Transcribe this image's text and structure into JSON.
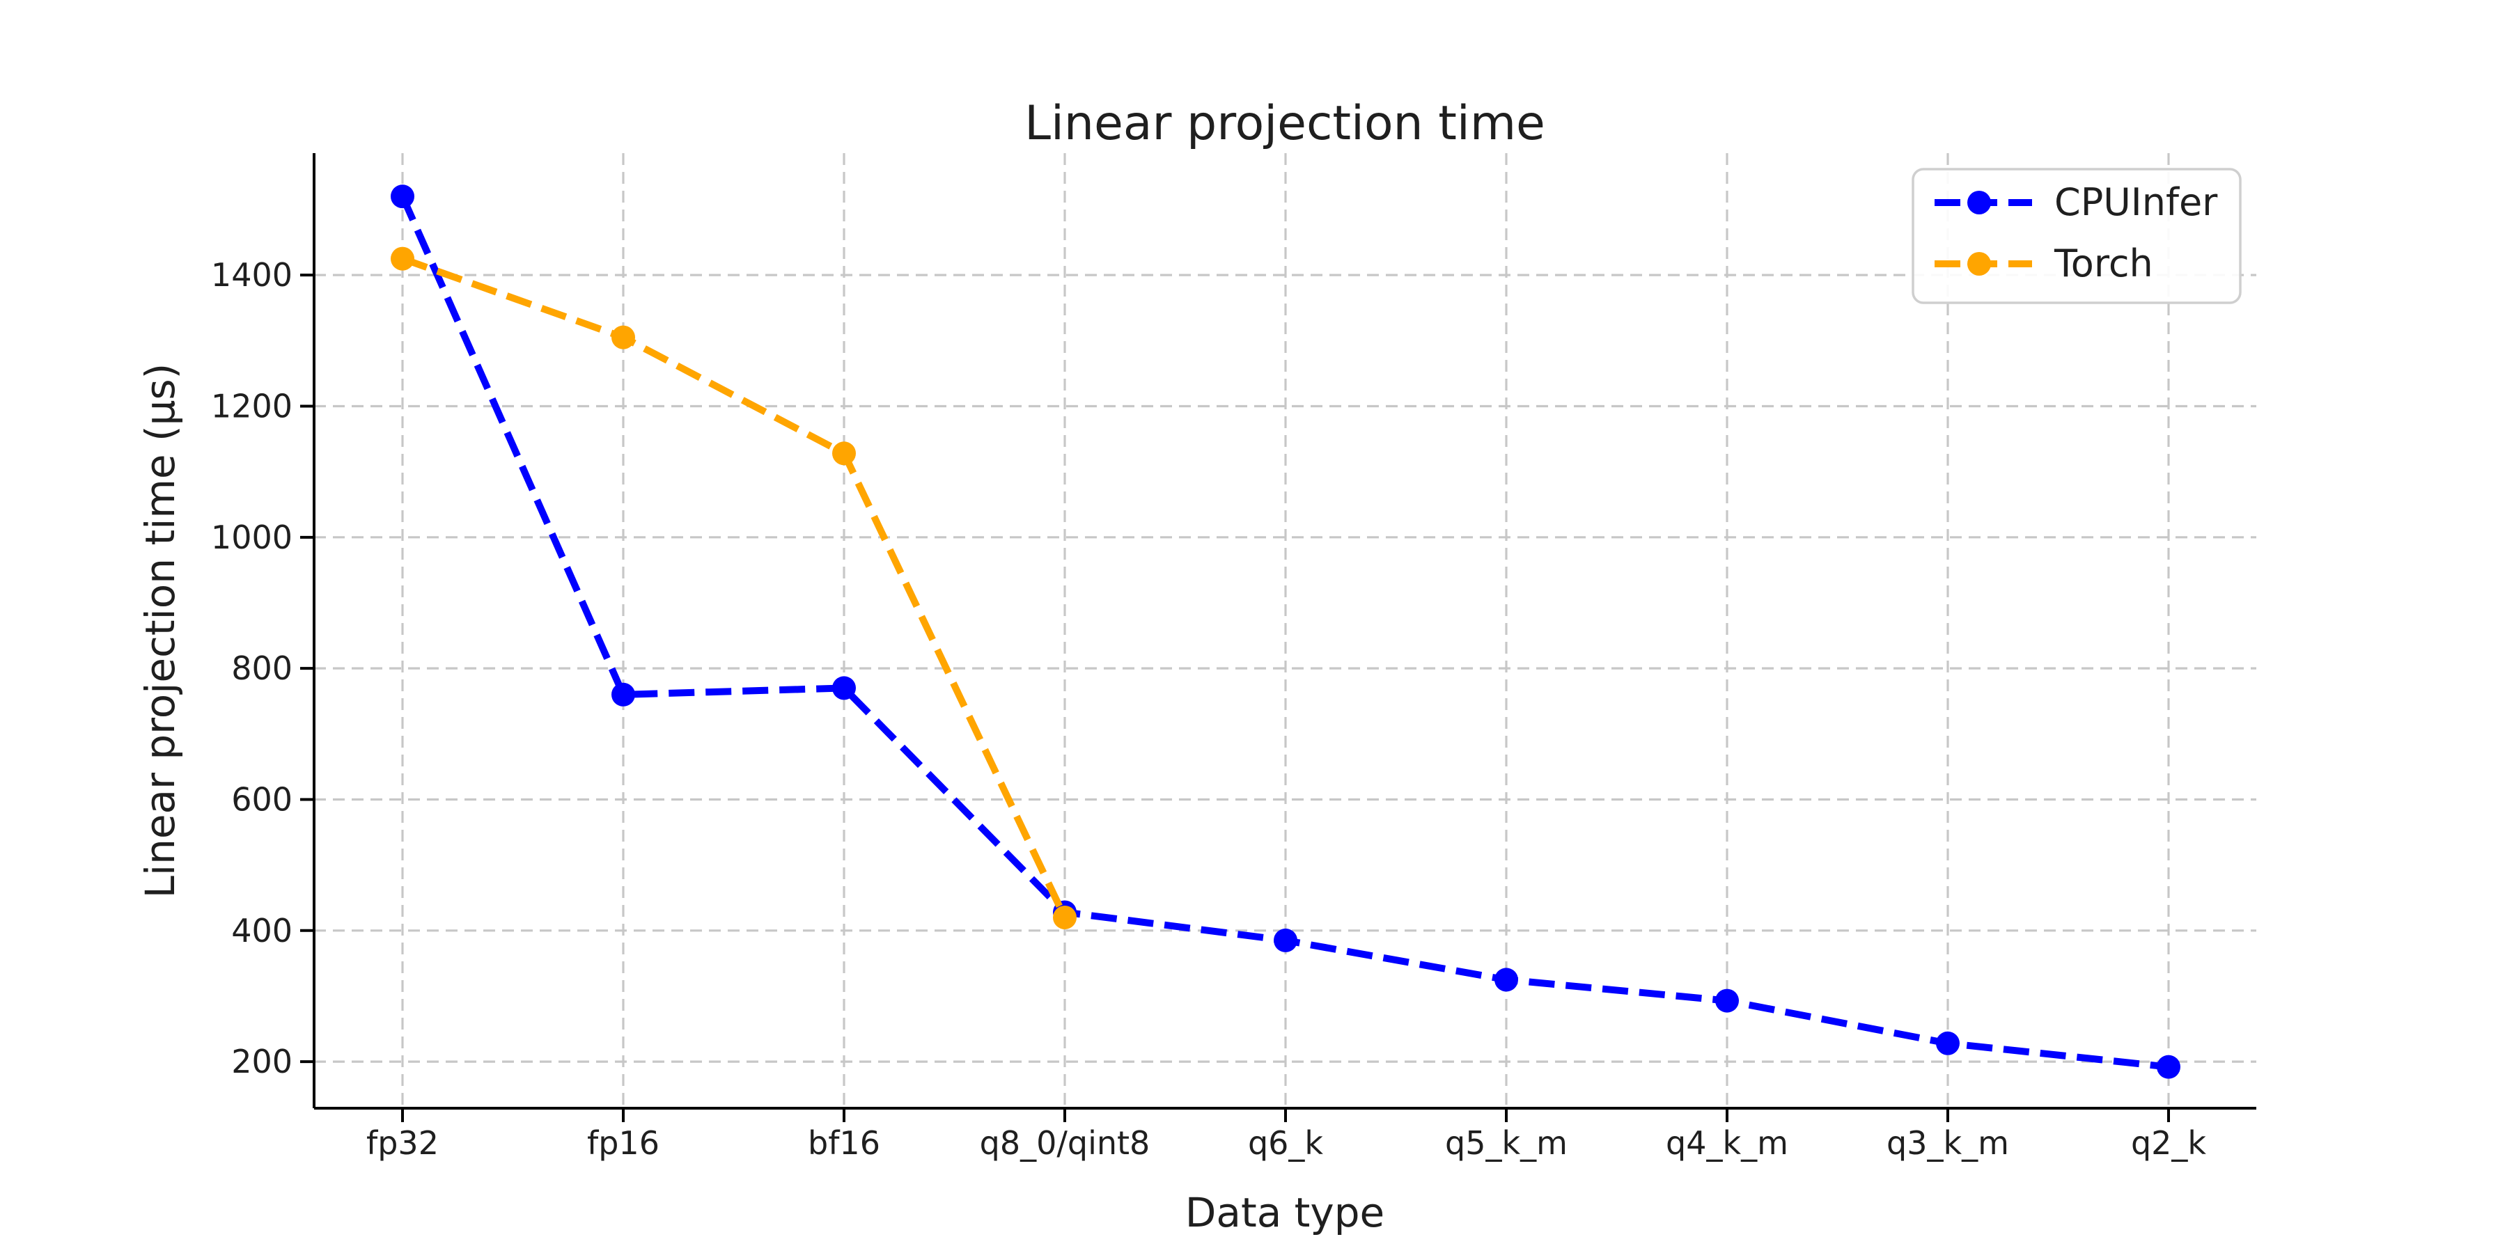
{
  "chart_data": {
    "type": "line",
    "title": "Linear projection time",
    "xlabel": "Data type",
    "ylabel": "Linear projection time (μs)",
    "categories": [
      "fp32",
      "fp16",
      "bf16",
      "q8_0/qint8",
      "q6_k",
      "q5_k_m",
      "q4_k_m",
      "q3_k_m",
      "q2_k"
    ],
    "series": [
      {
        "name": "CPUInfer",
        "color": "#0000ff",
        "values": [
          1520,
          760,
          770,
          428,
          385,
          325,
          293,
          228,
          192
        ]
      },
      {
        "name": "Torch",
        "color": "#ffa500",
        "values": [
          1425,
          1305,
          1128,
          420
        ]
      }
    ],
    "yticks": [
      200,
      400,
      600,
      800,
      1000,
      1200,
      1400
    ],
    "ylim": [
      129,
      1586
    ],
    "grid": true,
    "line_style": "dashed",
    "marker": "circle",
    "legend_position": "upper right"
  },
  "style": {
    "background": "#ffffff",
    "grid_color": "#c7c7c7",
    "axis_color": "#000000",
    "text_color": "#1f1f1f",
    "legend_border": "#cfcfcf"
  }
}
